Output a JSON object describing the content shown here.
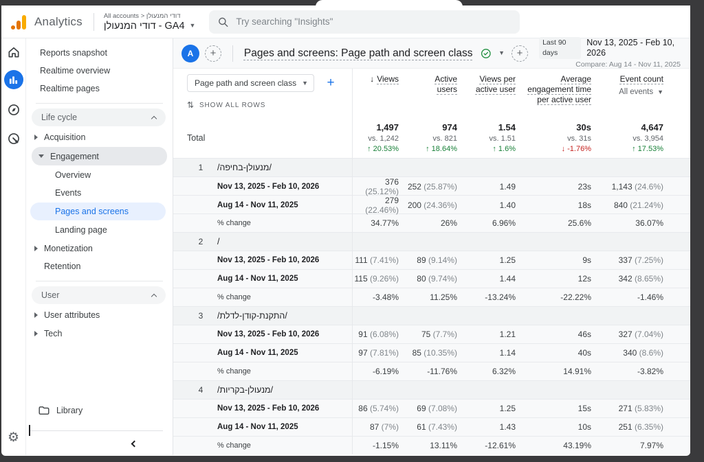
{
  "topbar": {
    "brand": "Analytics",
    "breadcrumb": "All accounts > דודי המנעולן",
    "property": "דודי המנעולן - GA4",
    "search_placeholder": "Try searching \"Insights\""
  },
  "sidebar": {
    "top": [
      "Reports snapshot",
      "Realtime overview",
      "Realtime pages"
    ],
    "lifecycle_header": "Life cycle",
    "acquisition": "Acquisition",
    "engagement": "Engagement",
    "engagement_children": [
      "Overview",
      "Events",
      "Pages and screens",
      "Landing page"
    ],
    "monetization": "Monetization",
    "retention": "Retention",
    "user_header": "User",
    "user_items": [
      "User attributes",
      "Tech"
    ],
    "library": "Library"
  },
  "report_header": {
    "avatar": "A",
    "title": "Pages and screens: Page path and screen class",
    "range_label": "Last 90 days",
    "range": "Nov 13, 2025 - Feb 10, 2026",
    "compare": "Compare: Aug 14 - Nov 11, 2025"
  },
  "table": {
    "dimension_selector": "Page path and screen class",
    "show_all_rows": "SHOW ALL ROWS",
    "columns": [
      {
        "label": "Views",
        "sorted": true
      },
      {
        "label": "Active users"
      },
      {
        "label": "Views per active user"
      },
      {
        "label": "Average engagement time per active user"
      },
      {
        "label": "Event count",
        "sub": "All events"
      }
    ],
    "total_label": "Total",
    "total_metrics": [
      {
        "value": "1,497",
        "vs": "vs. 1,242",
        "change": "20.53%",
        "dir": "up"
      },
      {
        "value": "974",
        "vs": "vs. 821",
        "change": "18.64%",
        "dir": "up"
      },
      {
        "value": "1.54",
        "vs": "vs. 1.51",
        "change": "1.6%",
        "dir": "up"
      },
      {
        "value": "30s",
        "vs": "vs. 31s",
        "change": "-1.76%",
        "dir": "down"
      },
      {
        "value": "4,647",
        "vs": "vs. 3,954",
        "change": "17.53%",
        "dir": "up"
      }
    ],
    "period1_label": "Nov 13, 2025 - Feb 10, 2026",
    "period2_label": "Aug 14 - Nov 11, 2025",
    "change_label": "% change",
    "groups": [
      {
        "num": "1",
        "path": "/מנעולן-בחיפה/",
        "period1": [
          "376 (25.12%)",
          "252 (25.87%)",
          "1.49",
          "23s",
          "1,143 (24.6%)"
        ],
        "period2": [
          "279 (22.46%)",
          "200 (24.36%)",
          "1.40",
          "18s",
          "840 (21.24%)"
        ],
        "change": [
          "34.77%",
          "26%",
          "6.96%",
          "25.6%",
          "36.07%"
        ]
      },
      {
        "num": "2",
        "path": "/",
        "period1": [
          "111 (7.41%)",
          "89 (9.14%)",
          "1.25",
          "9s",
          "337 (7.25%)"
        ],
        "period2": [
          "115 (9.26%)",
          "80 (9.74%)",
          "1.44",
          "12s",
          "342 (8.65%)"
        ],
        "change": [
          "-3.48%",
          "11.25%",
          "-13.24%",
          "-22.22%",
          "-1.46%"
        ]
      },
      {
        "num": "3",
        "path": "/התקנת-קודן-לדלת/",
        "period1": [
          "91 (6.08%)",
          "75 (7.7%)",
          "1.21",
          "46s",
          "327 (7.04%)"
        ],
        "period2": [
          "97 (7.81%)",
          "85 (10.35%)",
          "1.14",
          "40s",
          "340 (8.6%)"
        ],
        "change": [
          "-6.19%",
          "-11.76%",
          "6.32%",
          "14.91%",
          "-3.82%"
        ]
      },
      {
        "num": "4",
        "path": "/מנעולן-בקריות/",
        "period1": [
          "86 (5.74%)",
          "69 (7.08%)",
          "1.25",
          "15s",
          "271 (5.83%)"
        ],
        "period2": [
          "87 (7%)",
          "61 (7.43%)",
          "1.43",
          "10s",
          "251 (6.35%)"
        ],
        "change": [
          "-1.15%",
          "13.11%",
          "-12.61%",
          "43.19%",
          "7.97%"
        ]
      }
    ]
  }
}
